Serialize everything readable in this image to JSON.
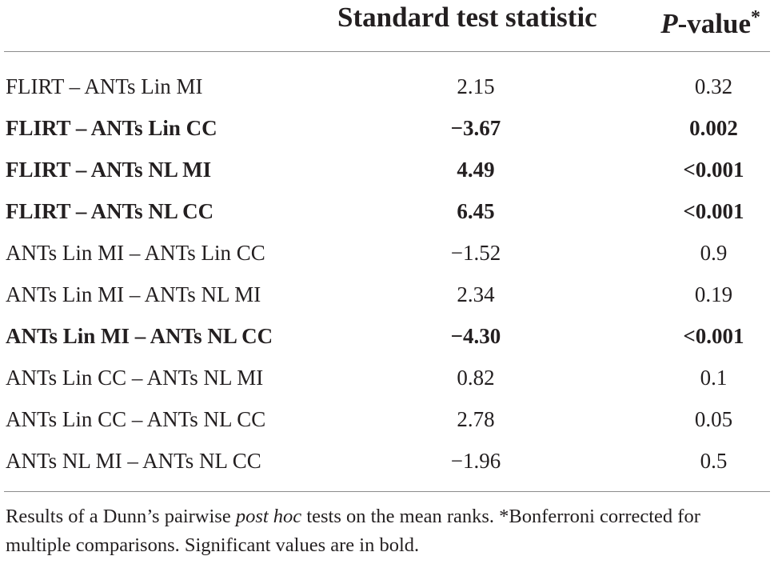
{
  "table": {
    "header": {
      "stat_label": "Standard test statistic",
      "pvalue_italic": "P",
      "pvalue_rest": "-value",
      "pvalue_marker": "*"
    },
    "rows": [
      {
        "comparison": "FLIRT – ANTs Lin MI",
        "statistic": "2.15",
        "p_value": "0.32",
        "significant": false
      },
      {
        "comparison": "FLIRT – ANTs Lin CC",
        "statistic": "−3.67",
        "p_value": "0.002",
        "significant": true
      },
      {
        "comparison": "FLIRT – ANTs NL MI",
        "statistic": "4.49",
        "p_value": "<0.001",
        "significant": true
      },
      {
        "comparison": "FLIRT – ANTs NL CC",
        "statistic": "6.45",
        "p_value": "<0.001",
        "significant": true
      },
      {
        "comparison": "ANTs Lin MI – ANTs Lin CC",
        "statistic": "−1.52",
        "p_value": "0.9",
        "significant": false
      },
      {
        "comparison": "ANTs Lin MI – ANTs NL MI",
        "statistic": "2.34",
        "p_value": "0.19",
        "significant": false
      },
      {
        "comparison": "ANTs Lin MI – ANTs NL CC",
        "statistic": "−4.30",
        "p_value": "<0.001",
        "significant": true
      },
      {
        "comparison": "ANTs Lin CC – ANTs NL MI",
        "statistic": "0.82",
        "p_value": "0.1",
        "significant": false
      },
      {
        "comparison": "ANTs Lin CC – ANTs NL CC",
        "statistic": "2.78",
        "p_value": "0.05",
        "significant": false
      },
      {
        "comparison": "ANTs NL MI – ANTs NL CC",
        "statistic": "−1.96",
        "p_value": "0.5",
        "significant": false
      }
    ],
    "footnote": {
      "part1": "Results of a Dunn’s pairwise ",
      "italic": "post hoc",
      "part2": " tests on the mean ranks. *Bonferroni corrected for multiple comparisons. Significant values are in bold."
    }
  }
}
